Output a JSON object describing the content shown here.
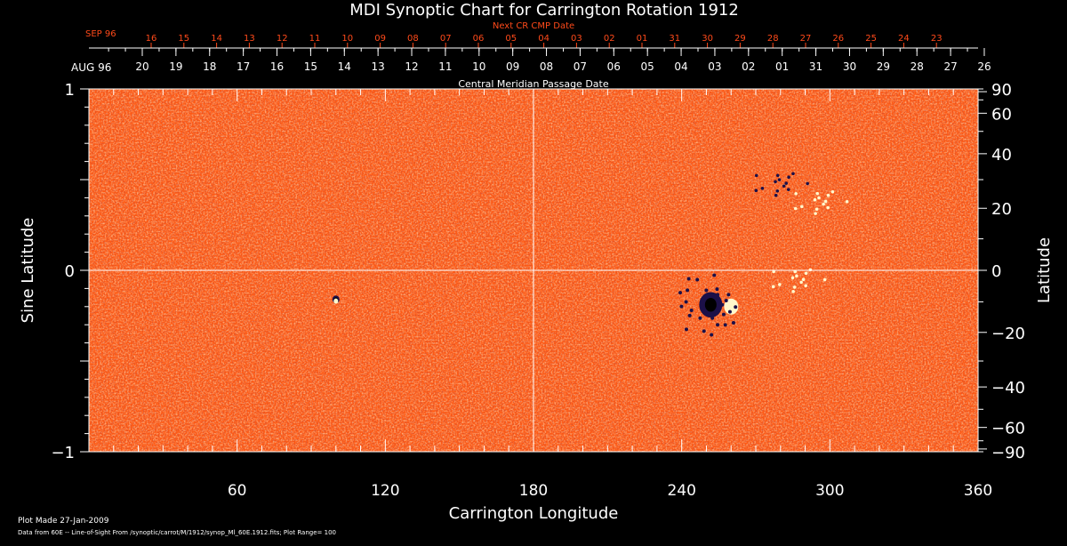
{
  "chart_data": {
    "type": "heatmap",
    "title": "MDI Synoptic Chart for Carrington Rotation 1912",
    "xlabel": "Carrington Longitude",
    "ylabel": "Sine Latitude",
    "ylabel_right": "Latitude",
    "xlim": [
      0,
      360
    ],
    "ylim": [
      -1,
      1
    ],
    "x_ticks": [
      60,
      120,
      180,
      240,
      300,
      360
    ],
    "y_ticks_left": [
      "1",
      "0",
      "−1"
    ],
    "y_ticks_left_values": [
      1,
      0,
      -1
    ],
    "y_ticks_right": [
      90,
      60,
      40,
      20,
      0,
      -20,
      -40,
      -60,
      -90
    ],
    "grid_lines": {
      "longitude": 180,
      "sine_latitude": 0
    },
    "top_axis_primary": {
      "month_label": "AUG 96",
      "days": [
        "20",
        "19",
        "18",
        "17",
        "16",
        "15",
        "14",
        "13",
        "12",
        "11",
        "10",
        "09",
        "08",
        "07",
        "06",
        "05",
        "04",
        "03",
        "02",
        "01",
        "31",
        "30",
        "29",
        "28",
        "27",
        "26"
      ],
      "caption": "Central Meridian Passage Date"
    },
    "top_axis_secondary": {
      "month_label": "SEP 96",
      "days": [
        "16",
        "15",
        "14",
        "13",
        "12",
        "11",
        "10",
        "09",
        "08",
        "07",
        "06",
        "05",
        "04",
        "03",
        "02",
        "01",
        "31",
        "30",
        "29",
        "28",
        "27",
        "26",
        "25",
        "24",
        "23"
      ],
      "caption": "Next CR CMP Date"
    },
    "plot_range": 100,
    "features": [
      {
        "name": "bipolar active region",
        "longitude": 255,
        "sine_latitude": -0.19,
        "polarity": "mixed"
      },
      {
        "name": "small bipole",
        "longitude": 100,
        "sine_latitude": -0.16,
        "polarity": "mixed"
      },
      {
        "name": "positive plage",
        "longitude": 287,
        "sine_latitude": -0.05,
        "polarity": "positive"
      },
      {
        "name": "negative network",
        "longitude": 280,
        "sine_latitude": 0.48,
        "polarity": "negative"
      },
      {
        "name": "positive network",
        "longitude": 296,
        "sine_latitude": 0.38,
        "polarity": "positive"
      }
    ],
    "colors": {
      "background_field": "#ff5a14",
      "positive": "#fff8cc",
      "negative": "#1c1048",
      "axes": "#ffffff",
      "secondary_axis": "#ff4a1a"
    }
  },
  "footer": {
    "plot_made": "Plot Made 27-Jan-2009",
    "data_source": "Data from 60E -- Line-of-Sight From /synoptic/carrot/M/1912/synop_Ml_60E.1912.fits; Plot Range=  100"
  }
}
